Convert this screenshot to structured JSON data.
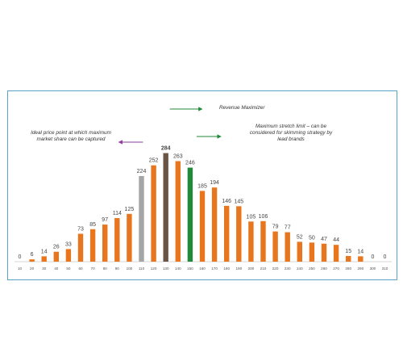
{
  "chart_data": {
    "type": "bar",
    "categories": [
      "10",
      "20",
      "30",
      "40",
      "50",
      "60",
      "70",
      "80",
      "90",
      "100",
      "110",
      "120",
      "130",
      "140",
      "150",
      "160",
      "170",
      "180",
      "190",
      "200",
      "210",
      "220",
      "230",
      "240",
      "250",
      "260",
      "270",
      "280",
      "290",
      "300",
      "310"
    ],
    "values": [
      0,
      6,
      14,
      26,
      33,
      73,
      85,
      97,
      114,
      125,
      224,
      252,
      284,
      263,
      246,
      185,
      194,
      146,
      145,
      105,
      106,
      79,
      77,
      52,
      50,
      47,
      44,
      15,
      14,
      0,
      0
    ],
    "bar_colors": [
      "#e8761f",
      "#e8761f",
      "#e8761f",
      "#e8761f",
      "#e8761f",
      "#e8761f",
      "#e8761f",
      "#e8761f",
      "#e8761f",
      "#e8761f",
      "#a5a5a5",
      "#e8761f",
      "#6a5446",
      "#e8761f",
      "#1f8a3a",
      "#e8761f",
      "#e8761f",
      "#e8761f",
      "#e8761f",
      "#e8761f",
      "#e8761f",
      "#e8761f",
      "#e8761f",
      "#e8761f",
      "#e8761f",
      "#e8761f",
      "#e8761f",
      "#e8761f",
      "#e8761f",
      "#e8761f",
      "#e8761f"
    ],
    "bold_value_index": 12,
    "ylim": [
      0,
      300
    ],
    "grid": false,
    "annotations": [
      {
        "id": "revenue-maximizer",
        "text": "Revenue Maximizer",
        "arrow_color": "#1f8a3a"
      },
      {
        "id": "stretch-limit",
        "text": "Maximum stretch limit – can be considered for skimming strategy by lead brands",
        "arrow_color": "#1f8a3a"
      },
      {
        "id": "ideal-price",
        "text": "Ideal price point at which maximum market share can be captured",
        "arrow_color": "#8e3fa0"
      }
    ]
  }
}
